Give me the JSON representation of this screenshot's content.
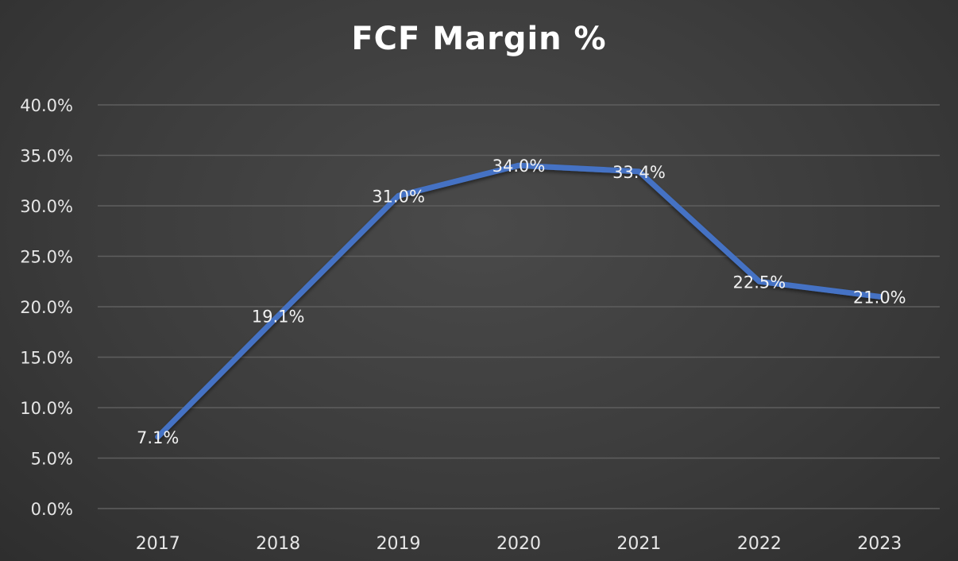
{
  "chart_data": {
    "type": "line",
    "title": "FCF Margin %",
    "xlabel": "",
    "ylabel": "",
    "categories": [
      "2017",
      "2018",
      "2019",
      "2020",
      "2021",
      "2022",
      "2023"
    ],
    "series": [
      {
        "values": [
          7.1,
          19.1,
          31.0,
          34.0,
          33.4,
          22.5,
          21.0
        ],
        "labels": [
          "7.1%",
          "19.1%",
          "31.0%",
          "34.0%",
          "33.4%",
          "22.5%",
          "21.0%"
        ],
        "color": "#4472c4"
      }
    ],
    "ylim": [
      0,
      40
    ],
    "yticks": [
      0,
      5,
      10,
      15,
      20,
      25,
      30,
      35,
      40
    ],
    "ytick_labels": [
      "0.0%",
      "5.0%",
      "10.0%",
      "15.0%",
      "20.0%",
      "25.0%",
      "30.0%",
      "35.0%",
      "40.0%"
    ],
    "grid": true,
    "legend": "none"
  }
}
